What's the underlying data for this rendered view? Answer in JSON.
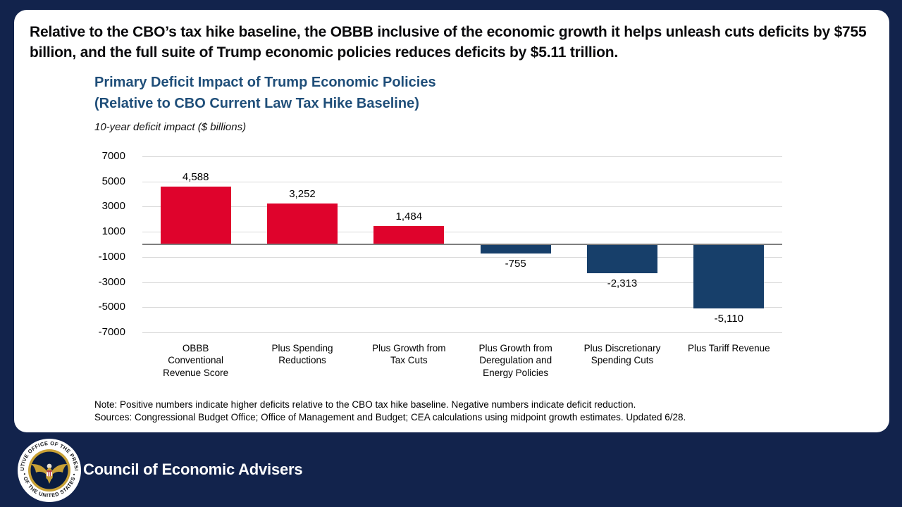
{
  "page": {
    "background_color": "#12234C",
    "card_color": "#FFFFFF"
  },
  "headline": {
    "text": "Relative to the CBO’s tax hike baseline, the OBBB inclusive of the economic growth it helps unleash cuts deficits by $755 billion, and the full suite of Trump economic policies reduces deficits by $5.11 trillion."
  },
  "chart_data": {
    "type": "bar",
    "title_line1": "Primary Deficit Impact of Trump Economic Policies",
    "title_line2": "(Relative to CBO Current Law Tax Hike Baseline)",
    "subtitle": "10-year deficit impact ($ billions)",
    "categories": [
      "OBBB Conventional Revenue Score",
      "Plus Spending Reductions",
      "Plus Growth from Tax Cuts",
      "Plus Growth from Deregulation and Energy Policies",
      "Plus Discretionary Spending Cuts",
      "Plus Tariff Revenue"
    ],
    "category_lines": [
      "OBBB\nConventional\nRevenue Score",
      "Plus Spending\nReductions",
      "Plus Growth from\nTax Cuts",
      "Plus Growth from\nDeregulation and\nEnergy Policies",
      "Plus Discretionary\nSpending Cuts",
      "Plus Tariff Revenue"
    ],
    "values": [
      4588,
      3252,
      1484,
      -755,
      -2313,
      -5110
    ],
    "labels": [
      "4,588",
      "3,252",
      "1,484",
      "-755",
      "-2,313",
      "-5,110"
    ],
    "ylim": [
      -7000,
      7000
    ],
    "yticks": [
      7000,
      5000,
      3000,
      1000,
      -1000,
      -3000,
      -5000,
      -7000
    ],
    "positive_color": "#DF032C",
    "negative_color": "#173F6A",
    "gridline_color": "#D9D9D9",
    "zero_line_color": "#7F7F7F",
    "grid": true,
    "legend": "none"
  },
  "notes": {
    "note": "Note: Positive numbers indicate higher deficits relative to the CBO tax hike baseline. Negative numbers indicate deficit reduction.",
    "sources": "Sources: Congressional Budget Office; Office of Management and Budget; CEA calculations using midpoint growth estimates. Updated 6/28."
  },
  "footer": {
    "org": "Council of Economic Advisers",
    "seal_text_top": "EXECUTIVE OFFICE OF THE PRESIDENT",
    "seal_text_bottom": "• OF THE UNITED STATES •"
  }
}
